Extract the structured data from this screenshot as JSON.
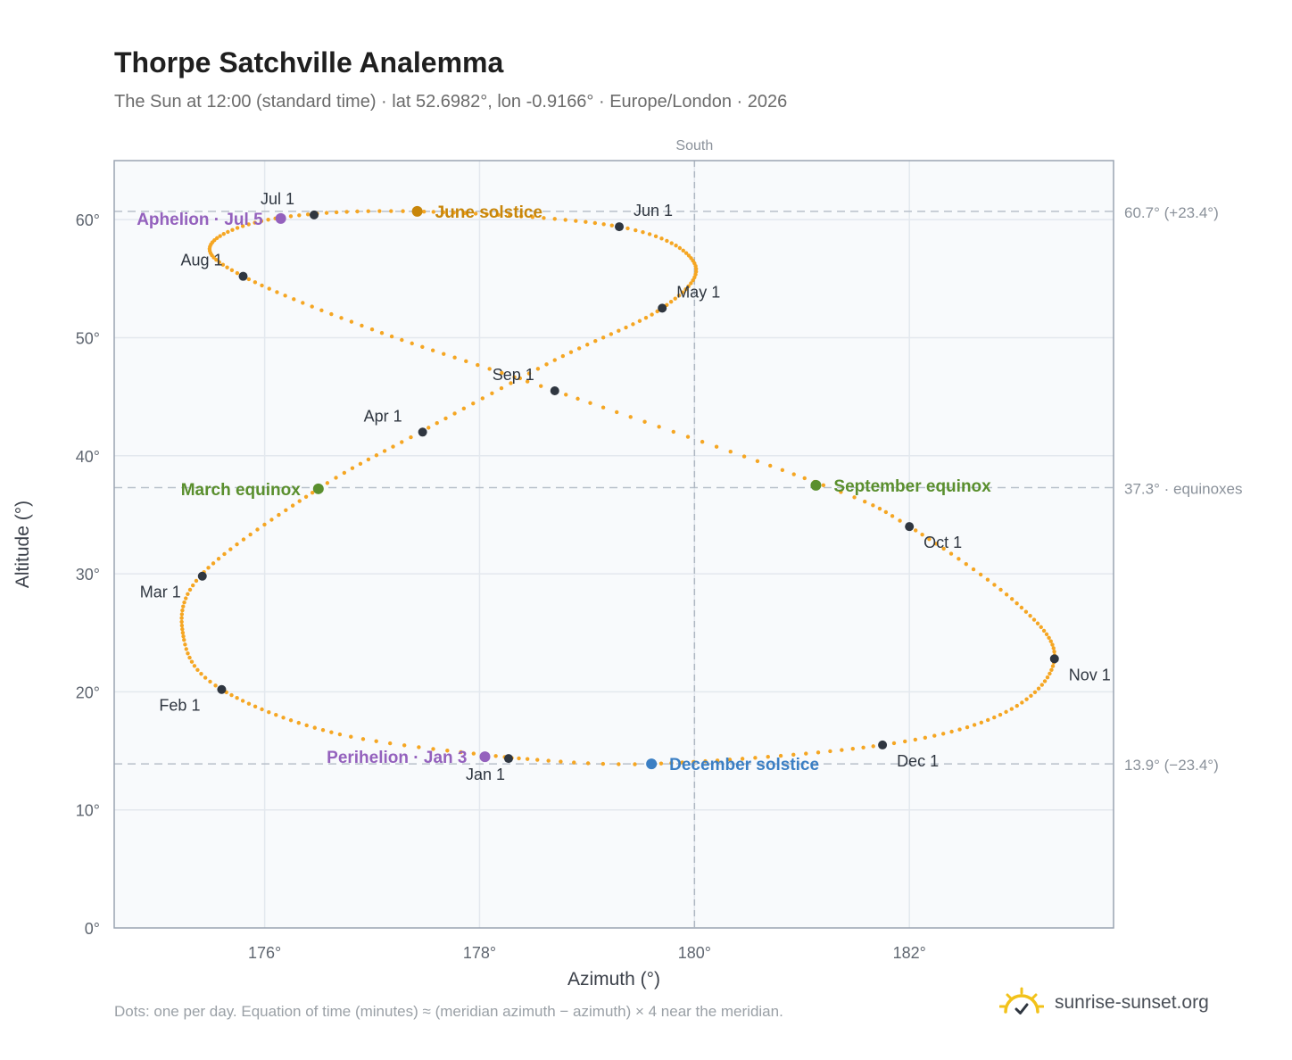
{
  "title": "Thorpe Satchville Analemma",
  "subtitle": "The Sun at 12:00 (standard time) · lat 52.6982°, lon -0.9166° · Europe/London · 2026",
  "footnote": "Dots: one per day. Equation of time (minutes) ≈ (meridian azimuth − azimuth) × 4 near the meridian.",
  "brand": {
    "name": "sunrise-sunset.org",
    "logo_icon": "sun-check-icon"
  },
  "colors": {
    "path": "#f5a623",
    "month_marker": "#2f3640",
    "june_solstice": "#c8860a",
    "december_solstice": "#3b7fc4",
    "equinox": "#5a8f2e",
    "apsis": "#9461bd",
    "plot_background": "#f8fafc",
    "grid": "#e3e8ee",
    "frame": "#9aa4b2",
    "reference_line": "#b8c0ca"
  },
  "chart_data": {
    "type": "scatter",
    "xlabel": "Azimuth (°)",
    "ylabel": "Altitude (°)",
    "xlim": [
      174.6,
      183.9
    ],
    "ylim": [
      0,
      65
    ],
    "x_ticks": [
      176,
      178,
      180,
      182
    ],
    "x_tick_labels": [
      "176°",
      "178°",
      "180°",
      "182°"
    ],
    "y_ticks": [
      0,
      10,
      20,
      30,
      40,
      50,
      60
    ],
    "y_tick_labels": [
      "0°",
      "10°",
      "20°",
      "30°",
      "40°",
      "50°",
      "60°"
    ],
    "grid": true,
    "meridian": {
      "azimuth": 180,
      "label": "South"
    },
    "reference_lines": [
      {
        "altitude": 60.7,
        "label": "60.7° (+23.4°)"
      },
      {
        "altitude": 37.3,
        "label": "37.3° · equinoxes"
      },
      {
        "altitude": 13.9,
        "label": "13.9° (−23.4°)"
      }
    ],
    "path_anchors": [
      {
        "doy": 1,
        "az": 178.3,
        "alt": 14.4
      },
      {
        "doy": 15,
        "az": 176.7,
        "alt": 16.4
      },
      {
        "doy": 32,
        "az": 175.6,
        "alt": 20.2
      },
      {
        "doy": 44,
        "az": 175.25,
        "alt": 24.4
      },
      {
        "doy": 60,
        "az": 175.4,
        "alt": 29.8
      },
      {
        "doy": 79,
        "az": 176.5,
        "alt": 37.2
      },
      {
        "doy": 91,
        "az": 177.45,
        "alt": 42.0
      },
      {
        "doy": 106,
        "az": 178.7,
        "alt": 48.1
      },
      {
        "doy": 121,
        "az": 179.7,
        "alt": 52.5
      },
      {
        "doy": 136,
        "az": 180.0,
        "alt": 56.3
      },
      {
        "doy": 152,
        "az": 179.3,
        "alt": 59.4
      },
      {
        "doy": 172,
        "az": 177.4,
        "alt": 60.7
      },
      {
        "doy": 186,
        "az": 176.1,
        "alt": 60.1
      },
      {
        "doy": 200,
        "az": 175.5,
        "alt": 57.9
      },
      {
        "doy": 213,
        "az": 175.8,
        "alt": 55.2
      },
      {
        "doy": 228,
        "az": 177.0,
        "alt": 50.7
      },
      {
        "doy": 244,
        "az": 178.7,
        "alt": 45.5
      },
      {
        "doy": 265,
        "az": 181.2,
        "alt": 37.5
      },
      {
        "doy": 274,
        "az": 182.0,
        "alt": 34.0
      },
      {
        "doy": 290,
        "az": 183.0,
        "alt": 27.5
      },
      {
        "doy": 305,
        "az": 183.35,
        "alt": 22.8
      },
      {
        "doy": 320,
        "az": 182.9,
        "alt": 18.3
      },
      {
        "doy": 335,
        "az": 181.75,
        "alt": 15.5
      },
      {
        "doy": 355,
        "az": 179.6,
        "alt": 13.9
      },
      {
        "doy": 366,
        "az": 178.3,
        "alt": 14.4
      }
    ],
    "month_markers": [
      {
        "label": "Jan 1",
        "az": 178.27,
        "alt": 14.35
      },
      {
        "label": "Feb 1",
        "az": 175.6,
        "alt": 20.2
      },
      {
        "label": "Mar 1",
        "az": 175.42,
        "alt": 29.8
      },
      {
        "label": "Apr 1",
        "az": 177.47,
        "alt": 42.0
      },
      {
        "label": "May 1",
        "az": 179.7,
        "alt": 52.5
      },
      {
        "label": "Jun 1",
        "az": 179.3,
        "alt": 59.4
      },
      {
        "label": "Jul 1",
        "az": 176.46,
        "alt": 60.4
      },
      {
        "label": "Aug 1",
        "az": 175.8,
        "alt": 55.2
      },
      {
        "label": "Sep 1",
        "az": 178.7,
        "alt": 45.5
      },
      {
        "label": "Oct 1",
        "az": 182.0,
        "alt": 34.0
      },
      {
        "label": "Nov 1",
        "az": 183.35,
        "alt": 22.8
      },
      {
        "label": "Dec 1",
        "az": 181.75,
        "alt": 15.5
      }
    ],
    "events": [
      {
        "label": "June solstice",
        "az": 177.42,
        "alt": 60.7,
        "color_key": "june_solstice"
      },
      {
        "label": "December solstice",
        "az": 179.6,
        "alt": 13.9,
        "color_key": "december_solstice"
      },
      {
        "label": "March equinox",
        "az": 176.5,
        "alt": 37.2,
        "color_key": "equinox"
      },
      {
        "label": "September equinox",
        "az": 181.13,
        "alt": 37.5,
        "color_key": "equinox"
      },
      {
        "label": "Aphelion · Jul 5",
        "az": 176.15,
        "alt": 60.1,
        "color_key": "apsis"
      },
      {
        "label": "Perihelion · Jan 3",
        "az": 178.05,
        "alt": 14.5,
        "color_key": "apsis"
      }
    ]
  }
}
